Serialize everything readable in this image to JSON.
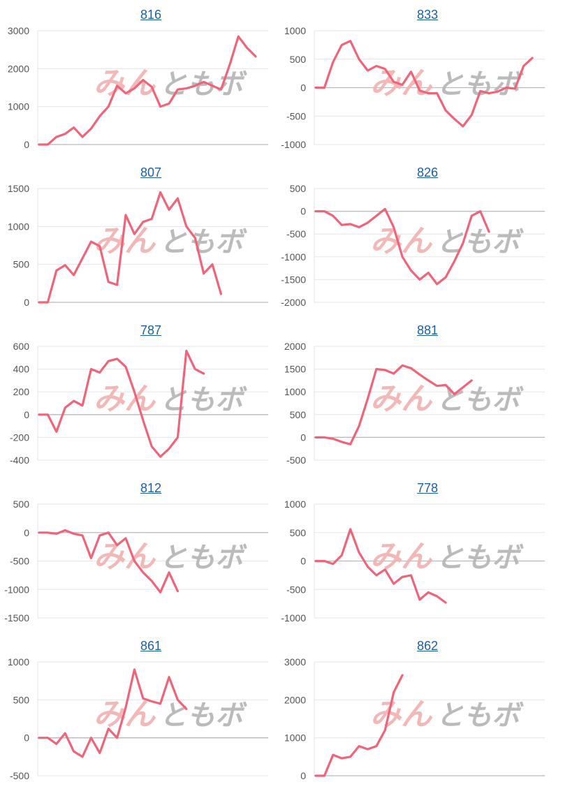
{
  "line_color": "#f0647a",
  "watermark": {
    "left": "みん",
    "right": "ともボ",
    "left_color": "#f3b4b4",
    "right_color": "#b8b8b8"
  },
  "chart_data": [
    {
      "type": "line",
      "title": "816",
      "yticks": [
        0,
        1000,
        2000,
        3000
      ],
      "ylim": [
        0,
        3000
      ],
      "values": [
        0,
        0,
        200,
        280,
        450,
        200,
        420,
        750,
        1000,
        1550,
        1350,
        1480,
        1700,
        1520,
        1000,
        1080,
        1450,
        1480,
        1550,
        1650,
        1550,
        1450,
        2100,
        2850,
        2550,
        2320
      ]
    },
    {
      "type": "line",
      "title": "833",
      "yticks": [
        -1000,
        -500,
        0,
        500,
        1000
      ],
      "ylim": [
        -1000,
        1000
      ],
      "values": [
        0,
        0,
        450,
        750,
        820,
        500,
        300,
        380,
        330,
        100,
        50,
        280,
        -50,
        -100,
        -100,
        -400,
        -550,
        -680,
        -480,
        -60,
        -100,
        -70,
        0,
        -20,
        380,
        520
      ]
    },
    {
      "type": "line",
      "title": "807",
      "yticks": [
        0,
        500,
        1000,
        1500
      ],
      "ylim": [
        0,
        1500
      ],
      "values": [
        0,
        0,
        420,
        490,
        360,
        580,
        800,
        740,
        270,
        230,
        1150,
        900,
        1060,
        1100,
        1450,
        1220,
        1370,
        1000,
        850,
        380,
        500,
        110
      ]
    },
    {
      "type": "line",
      "title": "826",
      "yticks": [
        -2000,
        -1500,
        -1000,
        -500,
        0,
        500
      ],
      "ylim": [
        -2000,
        500
      ],
      "values": [
        0,
        0,
        -100,
        -300,
        -280,
        -350,
        -250,
        -100,
        50,
        -350,
        -1000,
        -1300,
        -1500,
        -1350,
        -1600,
        -1450,
        -1100,
        -700,
        -100,
        0,
        -450
      ]
    },
    {
      "type": "line",
      "title": "787",
      "yticks": [
        -400,
        -200,
        0,
        200,
        400,
        600
      ],
      "ylim": [
        -400,
        600
      ],
      "values": [
        0,
        0,
        -150,
        60,
        120,
        80,
        400,
        370,
        470,
        490,
        420,
        200,
        -50,
        -280,
        -370,
        -300,
        -200,
        560,
        400,
        360
      ]
    },
    {
      "type": "line",
      "title": "881",
      "yticks": [
        -500,
        0,
        500,
        1000,
        1500,
        2000
      ],
      "ylim": [
        -500,
        2000
      ],
      "values": [
        0,
        0,
        -30,
        -100,
        -150,
        250,
        850,
        1500,
        1480,
        1400,
        1580,
        1520,
        1380,
        1250,
        1130,
        1150,
        950,
        1100,
        1250
      ]
    },
    {
      "type": "line",
      "title": "812",
      "yticks": [
        -1500,
        -1000,
        -500,
        0,
        500
      ],
      "ylim": [
        -1500,
        500
      ],
      "values": [
        0,
        0,
        -20,
        40,
        -20,
        -50,
        -450,
        -50,
        0,
        -220,
        -100,
        -500,
        -700,
        -850,
        -1050,
        -700,
        -1030
      ]
    },
    {
      "type": "line",
      "title": "778",
      "yticks": [
        -1000,
        -500,
        0,
        500,
        1000
      ],
      "ylim": [
        -1000,
        1000
      ],
      "values": [
        0,
        0,
        -50,
        100,
        560,
        150,
        -100,
        -250,
        -150,
        -400,
        -280,
        -250,
        -680,
        -550,
        -620,
        -730
      ]
    },
    {
      "type": "line",
      "title": "861",
      "yticks": [
        -500,
        0,
        500,
        1000
      ],
      "ylim": [
        -500,
        1000
      ],
      "values": [
        0,
        0,
        -80,
        60,
        -180,
        -250,
        0,
        -200,
        120,
        0,
        400,
        900,
        520,
        480,
        450,
        800,
        500,
        380
      ]
    },
    {
      "type": "line",
      "title": "862",
      "yticks": [
        0,
        1000,
        2000,
        3000
      ],
      "ylim": [
        0,
        3000
      ],
      "values": [
        0,
        0,
        550,
        460,
        500,
        780,
        700,
        780,
        1200,
        2200,
        2650
      ]
    }
  ]
}
